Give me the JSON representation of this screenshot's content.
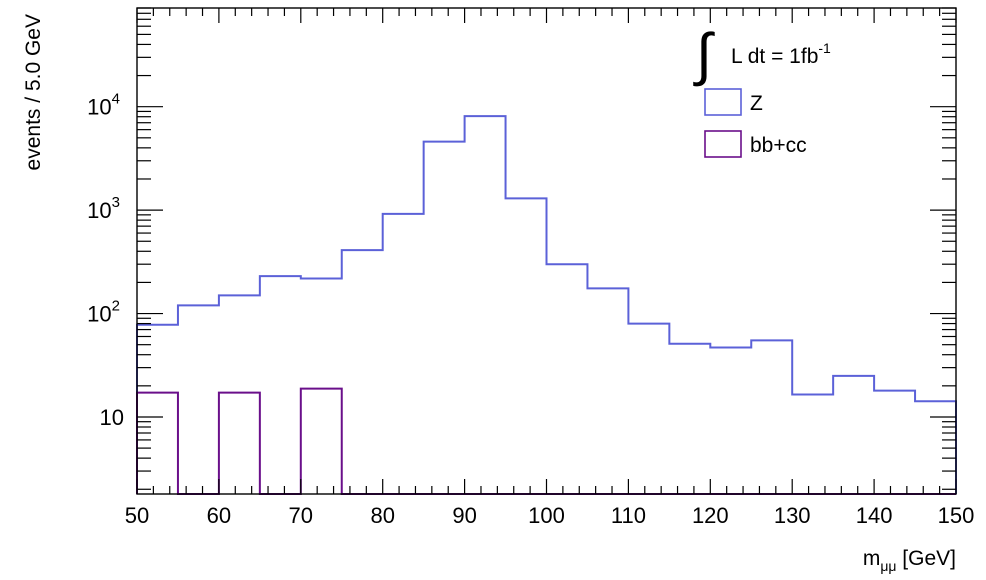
{
  "chart_data": {
    "type": "histogram",
    "bin_width": 5,
    "x_edges": [
      50,
      55,
      60,
      65,
      70,
      75,
      80,
      85,
      90,
      95,
      100,
      105,
      110,
      115,
      120,
      125,
      130,
      135,
      140,
      145,
      150
    ],
    "series": [
      {
        "name": "Z",
        "color": "#5b61d8",
        "values": [
          78,
          120,
          150,
          230,
          218,
          410,
          920,
          4600,
          8100,
          1300,
          300,
          175,
          80,
          51,
          47,
          55,
          16.5,
          25,
          18,
          14.2
        ]
      },
      {
        "name": "bb+cc",
        "color": "#6a0f8a",
        "values": [
          17.2,
          0,
          17.2,
          0,
          18.8,
          0,
          0,
          0,
          0,
          0,
          0,
          0,
          0,
          0,
          0,
          0,
          0,
          0,
          0,
          0
        ]
      }
    ],
    "xlim": [
      50,
      150
    ],
    "ylim": [
      1.8,
      90000
    ],
    "yscale": "log",
    "xticks": [
      50,
      60,
      70,
      80,
      90,
      100,
      110,
      120,
      130,
      140,
      150
    ],
    "xtick_labels": [
      "50",
      "60",
      "70",
      "80",
      "90",
      "100",
      "110",
      "120",
      "130",
      "140",
      "150"
    ],
    "yticks": [
      10,
      100,
      1000,
      10000
    ],
    "ytick_bases": [
      "10",
      "10",
      "10",
      "10"
    ],
    "ytick_exponents": [
      "",
      "2",
      "3",
      "4"
    ],
    "xlabel": "m",
    "xlabel_subscript": "μμ",
    "xlabel_unit": " [GeV]",
    "ylabel": "events / 5.0 GeV",
    "annotation": {
      "integral_symbol": "∫",
      "text": "L dt = 1fb",
      "superscript": "-1"
    },
    "legend_position": "top-right",
    "grid": false
  }
}
